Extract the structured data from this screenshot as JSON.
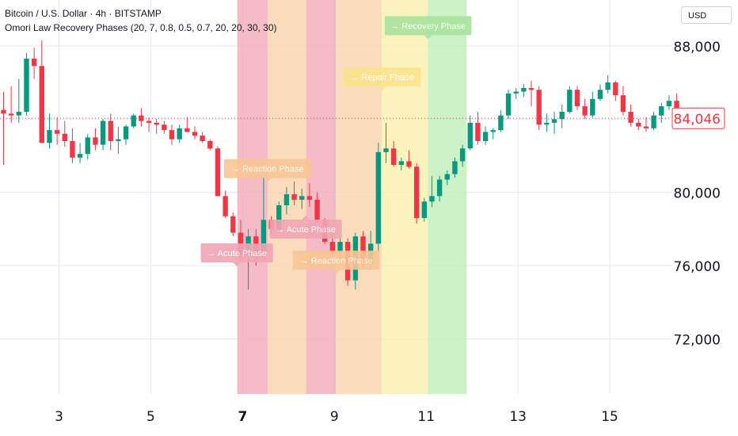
{
  "header": {
    "symbol_line": "Bitcoin / U.S. Dollar · 4h · BITSTAMP",
    "indicator_line": "Omori Law Recovery Phases (20, 7, 0.8, 0.5, 0.7, 20, 20, 30, 30)"
  },
  "currency_button": "USD",
  "colors": {
    "up": "#089981",
    "down": "#f23645",
    "acute": "#f2a5b5",
    "reaction": "#fad2a8",
    "repair": "#fcefa6",
    "recovery": "#bdeeb4",
    "grid": "#e6e9ef"
  },
  "chart_data": {
    "type": "candlestick",
    "title": "Bitcoin / U.S. Dollar · 4h · BITSTAMP",
    "ylim": [
      69000,
      90500
    ],
    "y_ticks": [
      72000,
      76000,
      80000,
      84000,
      88000
    ],
    "y_tick_labels": [
      "72,000",
      "76,000",
      "80,000",
      "84,000",
      "88,000"
    ],
    "x_ticks": [
      {
        "label": "3",
        "pos": 7.25
      },
      {
        "label": "5",
        "pos": 19.25
      },
      {
        "label": "7",
        "pos": 31.25,
        "bold": true
      },
      {
        "label": "9",
        "pos": 43.25
      },
      {
        "label": "11",
        "pos": 55.25
      },
      {
        "label": "13",
        "pos": 67.25
      },
      {
        "label": "15",
        "pos": 79.25
      }
    ],
    "last_price": 84046,
    "last_price_label": "84,046",
    "candles": [
      [
        84500,
        85500,
        81500,
        84300
      ],
      [
        84300,
        85800,
        83800,
        84200
      ],
      [
        84200,
        86200,
        83800,
        84400
      ],
      [
        84400,
        87600,
        84200,
        87300
      ],
      [
        87300,
        87900,
        86200,
        86900
      ],
      [
        86900,
        88300,
        82800,
        82700
      ],
      [
        82700,
        84300,
        82400,
        83400
      ],
      [
        83400,
        84100,
        82600,
        83200
      ],
      [
        83200,
        83900,
        82500,
        82800
      ],
      [
        82800,
        83500,
        81600,
        81900
      ],
      [
        81900,
        82700,
        81600,
        82100
      ],
      [
        82100,
        83200,
        81800,
        83000
      ],
      [
        83000,
        83500,
        82300,
        82600
      ],
      [
        82600,
        84000,
        82300,
        83900
      ],
      [
        83900,
        84300,
        82300,
        82800
      ],
      [
        82800,
        83600,
        82100,
        82900
      ],
      [
        82900,
        83700,
        82600,
        83600
      ],
      [
        83600,
        84300,
        83500,
        84200
      ],
      [
        84200,
        84600,
        83600,
        83900
      ],
      [
        83900,
        84100,
        83300,
        83800
      ],
      [
        83800,
        84000,
        83200,
        83700
      ],
      [
        83700,
        83900,
        83200,
        83400
      ],
      [
        83400,
        83700,
        82600,
        82900
      ],
      [
        82900,
        83700,
        82700,
        83500
      ],
      [
        83500,
        84100,
        83300,
        83300
      ],
      [
        83300,
        83600,
        82900,
        83100
      ],
      [
        83100,
        83300,
        82700,
        82800
      ],
      [
        82800,
        82900,
        82300,
        82400
      ],
      [
        82400,
        82500,
        79800,
        79800
      ],
      [
        79800,
        80100,
        78600,
        78700
      ],
      [
        78700,
        78900,
        77600,
        77800
      ],
      [
        77800,
        78500,
        76200,
        76600
      ],
      [
        76600,
        78000,
        74700,
        77600
      ],
      [
        77600,
        78000,
        76000,
        76700
      ],
      [
        76700,
        80800,
        76500,
        78500
      ],
      [
        78500,
        78700,
        77700,
        78000
      ],
      [
        78000,
        79500,
        77800,
        79300
      ],
      [
        79300,
        80300,
        78800,
        79900
      ],
      [
        79900,
        80600,
        79300,
        79600
      ],
      [
        79600,
        80200,
        79100,
        79800
      ],
      [
        79800,
        80500,
        79200,
        79600
      ],
      [
        79600,
        80000,
        78300,
        78500
      ],
      [
        78500,
        78600,
        77200,
        77300
      ],
      [
        77300,
        77800,
        76500,
        76700
      ],
      [
        76700,
        77600,
        76000,
        77300
      ],
      [
        77300,
        77500,
        74900,
        75200
      ],
      [
        75200,
        77800,
        74700,
        77600
      ],
      [
        77600,
        77900,
        75800,
        76100
      ],
      [
        76100,
        77900,
        75800,
        77200
      ],
      [
        77200,
        82700,
        76800,
        82200
      ],
      [
        82200,
        83800,
        81600,
        82400
      ],
      [
        82400,
        82800,
        81400,
        81500
      ],
      [
        81500,
        81900,
        81200,
        81700
      ],
      [
        81700,
        82300,
        81300,
        81400
      ],
      [
        81400,
        81600,
        78300,
        78600
      ],
      [
        78600,
        79700,
        78400,
        79500
      ],
      [
        79500,
        80900,
        79200,
        79800
      ],
      [
        79800,
        80900,
        79500,
        80700
      ],
      [
        80700,
        81200,
        80400,
        81000
      ],
      [
        81000,
        81900,
        80800,
        81700
      ],
      [
        81700,
        82600,
        81400,
        82400
      ],
      [
        82400,
        84200,
        82300,
        83800
      ],
      [
        83800,
        84400,
        82600,
        82800
      ],
      [
        82800,
        83600,
        82600,
        83300
      ],
      [
        83300,
        83500,
        82900,
        83400
      ],
      [
        83400,
        84500,
        83300,
        84200
      ],
      [
        84200,
        85600,
        84000,
        85400
      ],
      [
        85400,
        85700,
        85100,
        85500
      ],
      [
        85500,
        85900,
        85200,
        85700
      ],
      [
        85700,
        86100,
        84700,
        85600
      ],
      [
        85600,
        85800,
        83400,
        83700
      ],
      [
        83700,
        84300,
        83300,
        83800
      ],
      [
        83800,
        84400,
        83200,
        84000
      ],
      [
        84000,
        84800,
        83500,
        84400
      ],
      [
        84400,
        85800,
        84300,
        85600
      ],
      [
        85600,
        85800,
        84500,
        84700
      ],
      [
        84700,
        85100,
        84000,
        84200
      ],
      [
        84200,
        85500,
        84100,
        85100
      ],
      [
        85100,
        85900,
        85000,
        85600
      ],
      [
        85600,
        86400,
        85400,
        86000
      ],
      [
        86000,
        86100,
        85000,
        85300
      ],
      [
        85300,
        85800,
        84200,
        84400
      ],
      [
        84400,
        84800,
        83600,
        83800
      ],
      [
        83800,
        84000,
        83400,
        83600
      ],
      [
        83600,
        84100,
        83300,
        83500
      ],
      [
        83500,
        84400,
        83400,
        84200
      ],
      [
        84200,
        84900,
        83800,
        84700
      ],
      [
        84700,
        85300,
        84500,
        85000
      ],
      [
        85000,
        85400,
        84200,
        84300
      ],
      [
        84300,
        84500,
        83800,
        84046
      ]
    ],
    "phases": [
      {
        "type": "acute",
        "start": 30.55,
        "end": 34.55
      },
      {
        "type": "reaction",
        "start": 34.55,
        "end": 39.55
      },
      {
        "type": "acute",
        "start": 39.55,
        "end": 43.45
      },
      {
        "type": "reaction",
        "start": 43.45,
        "end": 49.45
      },
      {
        "type": "repair",
        "start": 49.45,
        "end": 55.45
      },
      {
        "type": "recovery",
        "start": 55.45,
        "end": 60.55
      }
    ],
    "annotations": [
      {
        "text": "→ Acute Phase",
        "x": 30.5,
        "y": 76700,
        "style": "acute",
        "pointer": "down"
      },
      {
        "text": "→ Reaction Phase",
        "x": 34.5,
        "y": 81300,
        "style": "reaction",
        "pointer": "down"
      },
      {
        "text": "→ Acute Phase",
        "x": 39.5,
        "y": 78000,
        "style": "acute",
        "pointer": "up"
      },
      {
        "text": "→ Reaction Phase",
        "x": 43.5,
        "y": 76300,
        "style": "reaction",
        "pointer": "down"
      },
      {
        "text": "→ Repair Phase",
        "x": 49.5,
        "y": 86300,
        "style": "repair",
        "pointer": "down"
      },
      {
        "text": "→ Recovery Phase",
        "x": 55.5,
        "y": 89100,
        "style": "recovery",
        "pointer": "down"
      }
    ]
  }
}
